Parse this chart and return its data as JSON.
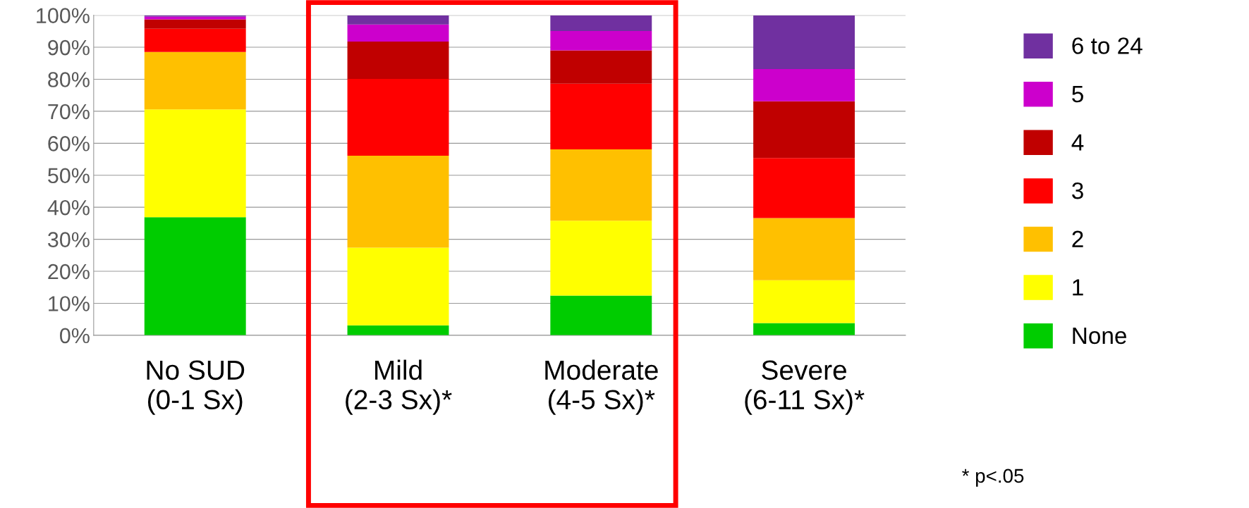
{
  "chart_data": {
    "type": "bar",
    "stacked": true,
    "categories": [
      "No SUD\n(0-1 Sx)",
      "Mild\n(2-3 Sx)*",
      "Moderate\n(4-5 Sx)*",
      "Severe\n(6-11 Sx)*"
    ],
    "series": [
      {
        "name": "None",
        "color": "#00cc00",
        "values": [
          36.9,
          3.1,
          12.4,
          3.8
        ]
      },
      {
        "name": "1",
        "color": "#ffff00",
        "values": [
          33.7,
          24.3,
          23.4,
          13.4
        ]
      },
      {
        "name": "2",
        "color": "#ffc000",
        "values": [
          17.9,
          28.7,
          22.3,
          19.4
        ]
      },
      {
        "name": "3",
        "color": "#ff0000",
        "values": [
          7.3,
          24.0,
          20.5,
          18.8
        ]
      },
      {
        "name": "4",
        "color": "#c00000",
        "values": [
          2.9,
          11.7,
          10.4,
          17.7
        ]
      },
      {
        "name": "5",
        "color": "#cc00cc",
        "values": [
          0.9,
          5.3,
          6.1,
          10.1
        ]
      },
      {
        "name": "6 to 24",
        "color": "#7030a0",
        "values": [
          0.4,
          2.9,
          4.9,
          16.8
        ]
      }
    ],
    "ylim": [
      0,
      100
    ],
    "yticks": [
      {
        "value": 0,
        "label": "0%"
      },
      {
        "value": 10,
        "label": "10%"
      },
      {
        "value": 20,
        "label": "20%"
      },
      {
        "value": 30,
        "label": "30%"
      },
      {
        "value": 40,
        "label": "40%"
      },
      {
        "value": 50,
        "label": "50%"
      },
      {
        "value": 60,
        "label": "60%"
      },
      {
        "value": 70,
        "label": "70%"
      },
      {
        "value": 80,
        "label": "80%"
      },
      {
        "value": 90,
        "label": "90%"
      },
      {
        "value": 100,
        "label": "100%"
      }
    ],
    "grid": "y",
    "legend": "right",
    "annotations": [
      "* p<.05"
    ]
  }
}
